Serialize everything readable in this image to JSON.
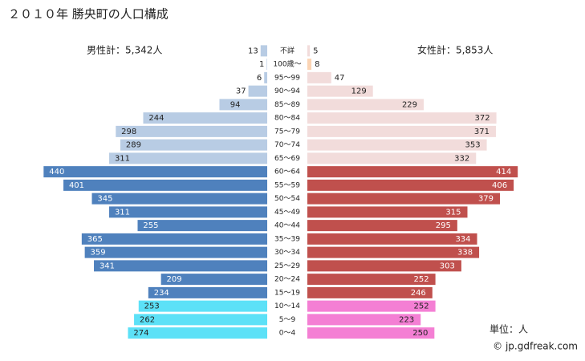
{
  "chart_data": {
    "type": "pyramid",
    "title": "２０１０年 勝央町の人口構成",
    "categories": [
      "不詳",
      "100歳～",
      "95～99",
      "90～94",
      "85～89",
      "80～84",
      "75～79",
      "70～74",
      "65～69",
      "60～64",
      "55～59",
      "50～54",
      "45～49",
      "40～44",
      "35～39",
      "30～34",
      "25～29",
      "20～24",
      "15～19",
      "10～14",
      "5～9",
      "0～4"
    ],
    "series": [
      {
        "name": "男性計：5,342人",
        "values": [
          13,
          1,
          6,
          37,
          94,
          244,
          298,
          289,
          311,
          440,
          401,
          345,
          311,
          255,
          365,
          359,
          341,
          209,
          234,
          253,
          262,
          274
        ],
        "colors": [
          "#b8cce4",
          "#b8cce4",
          "#b8cce4",
          "#b8cce4",
          "#b8cce4",
          "#b8cce4",
          "#b8cce4",
          "#b8cce4",
          "#b8cce4",
          "#4f81bd",
          "#4f81bd",
          "#4f81bd",
          "#4f81bd",
          "#4f81bd",
          "#4f81bd",
          "#4f81bd",
          "#4f81bd",
          "#4f81bd",
          "#4f81bd",
          "#5ce1f7",
          "#5ce1f7",
          "#5ce1f7"
        ]
      },
      {
        "name": "女性計：5,853人",
        "values": [
          5,
          8,
          47,
          129,
          229,
          372,
          371,
          353,
          332,
          414,
          406,
          379,
          315,
          295,
          334,
          338,
          303,
          252,
          246,
          252,
          223,
          250
        ],
        "colors": [
          "#f2dcdb",
          "#fbd4b4",
          "#f2dcdb",
          "#f2dcdb",
          "#f2dcdb",
          "#f2dcdb",
          "#f2dcdb",
          "#f2dcdb",
          "#f2dcdb",
          "#c0504d",
          "#c0504d",
          "#c0504d",
          "#c0504d",
          "#c0504d",
          "#c0504d",
          "#c0504d",
          "#c0504d",
          "#c0504d",
          "#c0504d",
          "#f47fd4",
          "#f47fd4",
          "#f47fd4"
        ]
      }
    ],
    "xlim": [
      0,
      450
    ],
    "unit": "単位：人",
    "source": "© jp.gdfreak.com"
  }
}
